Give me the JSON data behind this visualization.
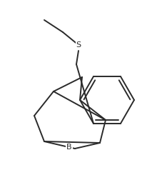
{
  "bg_color": "#ffffff",
  "line_color": "#2a2a2a",
  "line_width": 1.4,
  "label_color": "#2a2a2a",
  "figsize": [
    2.06,
    2.52
  ],
  "dpi": 100,
  "S_label": "S",
  "B_label": "B"
}
